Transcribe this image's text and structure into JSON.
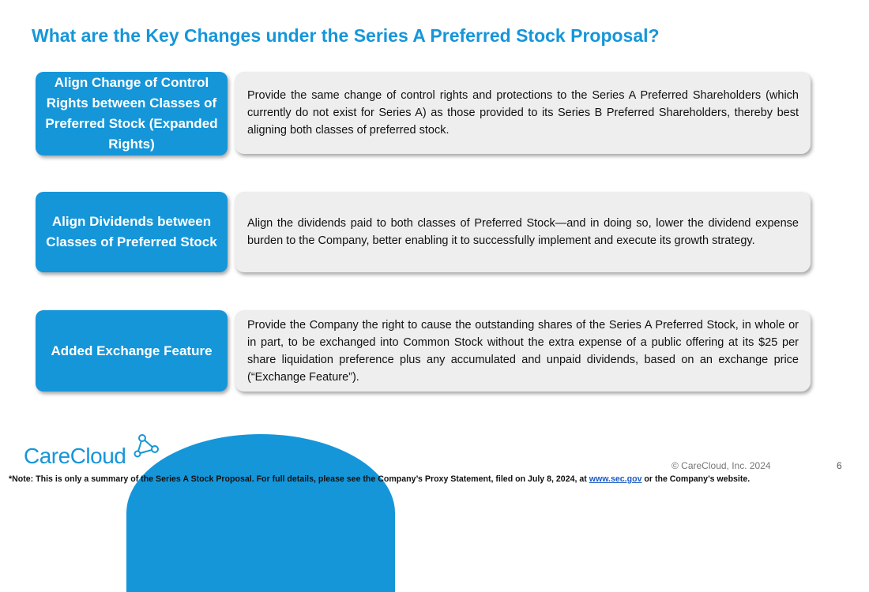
{
  "title": "What are the Key Changes under the Series A Preferred Stock Proposal?",
  "rows": [
    {
      "label": "Align Change of Control Rights between Classes of Preferred Stock (Expanded Rights)",
      "description": "Provide the same change of control rights and protections to the Series A Preferred Shareholders (which currently do not exist for Series A) as those provided to its Series B Preferred Shareholders, thereby best aligning both classes of preferred stock."
    },
    {
      "label": "Align Dividends between Classes of Preferred Stock",
      "description": "Align the dividends paid to both classes of Preferred Stock—and in doing so, lower the dividend expense burden to the Company, better enabling it to successfully implement and execute its growth strategy."
    },
    {
      "label": "Added Exchange Feature",
      "description": "Provide the Company the right to cause the outstanding shares of the Series A Preferred Stock, in whole or in part, to be exchanged into Common Stock without the extra expense of a public offering at its $25 per share liquidation preference plus any accumulated and unpaid dividends, based on an exchange price (“Exchange Feature”)."
    }
  ],
  "logo_text": "CareCloud",
  "copyright": "© CareCloud, Inc. 2024",
  "page_number": "6",
  "footnote": {
    "before": "*Note: This is only a summary of the Series A Stock Proposal.  For full details, please see the Company’s Proxy Statement, filed on July 8, 2024, at ",
    "link": "www.sec.gov",
    "after": " or the Company’s website."
  },
  "colors": {
    "accent": "#1596d9",
    "box_bg": "#eeeeee",
    "link": "#1a5bc4"
  }
}
